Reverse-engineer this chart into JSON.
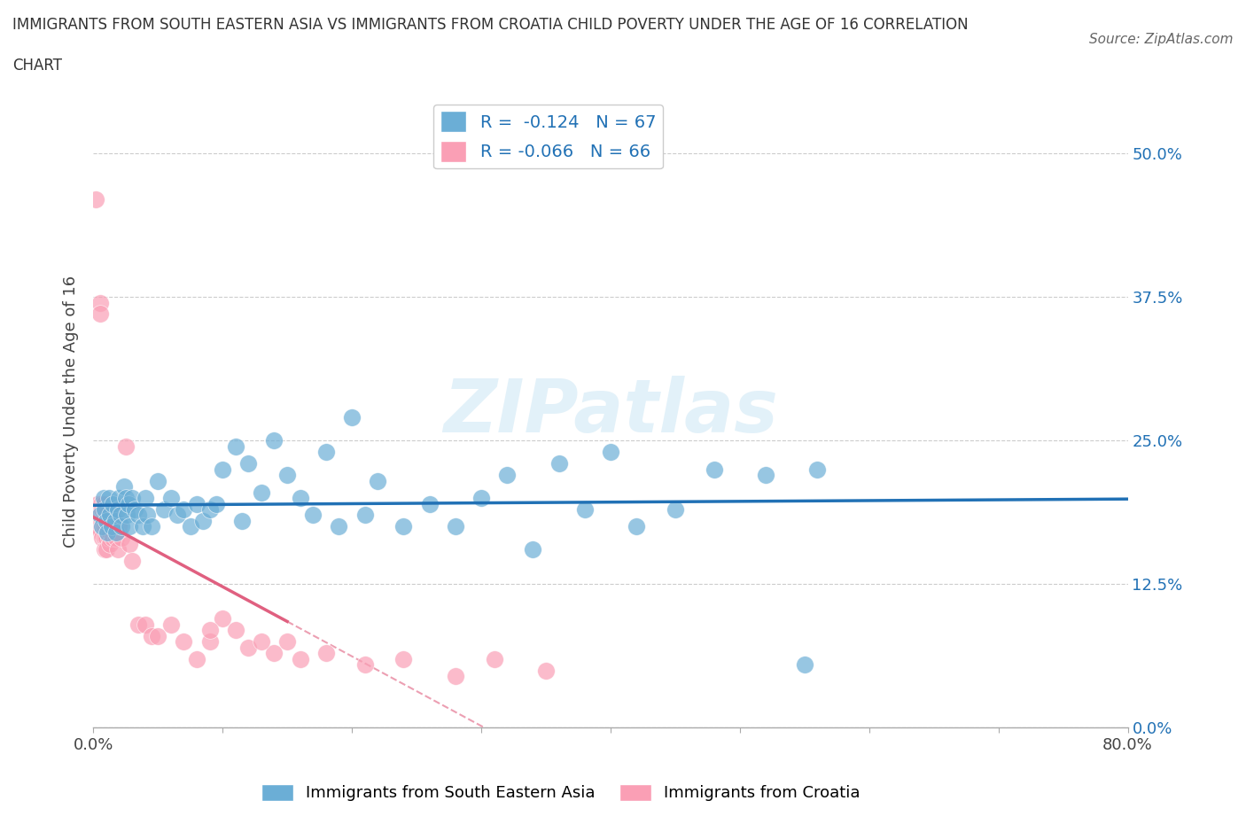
{
  "title_line1": "IMMIGRANTS FROM SOUTH EASTERN ASIA VS IMMIGRANTS FROM CROATIA CHILD POVERTY UNDER THE AGE OF 16 CORRELATION",
  "title_line2": "CHART",
  "source": "Source: ZipAtlas.com",
  "ylabel": "Child Poverty Under the Age of 16",
  "xlim": [
    0.0,
    0.8
  ],
  "ylim": [
    0.0,
    0.55
  ],
  "ytick_positions": [
    0.0,
    0.125,
    0.25,
    0.375,
    0.5
  ],
  "ytick_labels_right": [
    "0.0%",
    "12.5%",
    "25.0%",
    "37.5%",
    "50.0%"
  ],
  "R1": -0.124,
  "N1": 67,
  "R2": -0.066,
  "N2": 66,
  "color_sea": "#6baed6",
  "color_croatia": "#fa9fb5",
  "color_sea_line": "#2171b5",
  "color_croatia_line": "#e06080",
  "legend_label1": "Immigrants from South Eastern Asia",
  "legend_label2": "Immigrants from Croatia",
  "sea_x": [
    0.005,
    0.007,
    0.008,
    0.009,
    0.01,
    0.011,
    0.012,
    0.013,
    0.014,
    0.015,
    0.017,
    0.018,
    0.019,
    0.02,
    0.021,
    0.022,
    0.024,
    0.025,
    0.026,
    0.027,
    0.028,
    0.03,
    0.032,
    0.035,
    0.038,
    0.04,
    0.042,
    0.045,
    0.05,
    0.055,
    0.06,
    0.065,
    0.07,
    0.075,
    0.08,
    0.085,
    0.09,
    0.095,
    0.1,
    0.11,
    0.115,
    0.12,
    0.13,
    0.14,
    0.15,
    0.16,
    0.17,
    0.18,
    0.19,
    0.2,
    0.21,
    0.22,
    0.24,
    0.26,
    0.28,
    0.3,
    0.32,
    0.34,
    0.36,
    0.38,
    0.4,
    0.42,
    0.45,
    0.48,
    0.52,
    0.56,
    0.55
  ],
  "sea_y": [
    0.185,
    0.175,
    0.2,
    0.19,
    0.18,
    0.17,
    0.2,
    0.185,
    0.175,
    0.195,
    0.18,
    0.17,
    0.19,
    0.2,
    0.185,
    0.175,
    0.21,
    0.2,
    0.185,
    0.195,
    0.175,
    0.2,
    0.19,
    0.185,
    0.175,
    0.2,
    0.185,
    0.175,
    0.215,
    0.19,
    0.2,
    0.185,
    0.19,
    0.175,
    0.195,
    0.18,
    0.19,
    0.195,
    0.225,
    0.245,
    0.18,
    0.23,
    0.205,
    0.25,
    0.22,
    0.2,
    0.185,
    0.24,
    0.175,
    0.27,
    0.185,
    0.215,
    0.175,
    0.195,
    0.175,
    0.2,
    0.22,
    0.155,
    0.23,
    0.19,
    0.24,
    0.175,
    0.19,
    0.225,
    0.22,
    0.225,
    0.055
  ],
  "croatia_x": [
    0.002,
    0.003,
    0.003,
    0.004,
    0.004,
    0.005,
    0.005,
    0.006,
    0.006,
    0.006,
    0.007,
    0.007,
    0.007,
    0.007,
    0.008,
    0.008,
    0.008,
    0.009,
    0.009,
    0.009,
    0.009,
    0.01,
    0.01,
    0.01,
    0.01,
    0.01,
    0.011,
    0.011,
    0.012,
    0.012,
    0.013,
    0.013,
    0.014,
    0.015,
    0.015,
    0.016,
    0.017,
    0.018,
    0.019,
    0.02,
    0.022,
    0.025,
    0.028,
    0.03,
    0.035,
    0.04,
    0.045,
    0.05,
    0.06,
    0.07,
    0.08,
    0.09,
    0.1,
    0.11,
    0.12,
    0.14,
    0.15,
    0.18,
    0.21,
    0.24,
    0.28,
    0.31,
    0.35,
    0.13,
    0.09,
    0.16
  ],
  "croatia_y": [
    0.46,
    0.195,
    0.175,
    0.19,
    0.175,
    0.37,
    0.36,
    0.195,
    0.18,
    0.17,
    0.19,
    0.18,
    0.175,
    0.165,
    0.195,
    0.18,
    0.175,
    0.185,
    0.175,
    0.165,
    0.155,
    0.185,
    0.18,
    0.175,
    0.165,
    0.155,
    0.18,
    0.17,
    0.175,
    0.165,
    0.17,
    0.16,
    0.175,
    0.185,
    0.165,
    0.18,
    0.175,
    0.165,
    0.155,
    0.175,
    0.165,
    0.245,
    0.16,
    0.145,
    0.09,
    0.09,
    0.08,
    0.08,
    0.09,
    0.075,
    0.06,
    0.075,
    0.095,
    0.085,
    0.07,
    0.065,
    0.075,
    0.065,
    0.055,
    0.06,
    0.045,
    0.06,
    0.05,
    0.075,
    0.085,
    0.06
  ]
}
